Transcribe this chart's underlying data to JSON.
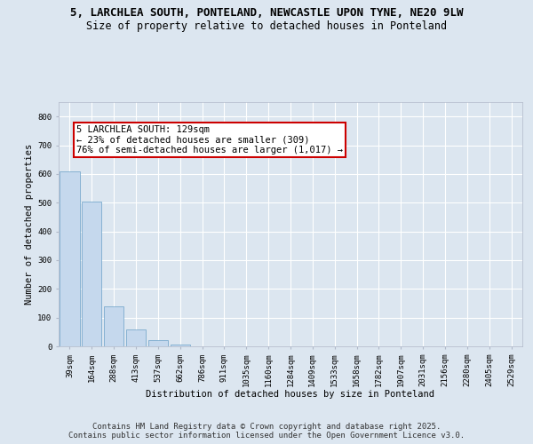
{
  "title_line1": "5, LARCHLEA SOUTH, PONTELAND, NEWCASTLE UPON TYNE, NE20 9LW",
  "title_line2": "Size of property relative to detached houses in Ponteland",
  "xlabel": "Distribution of detached houses by size in Ponteland",
  "ylabel": "Number of detached properties",
  "categories": [
    "39sqm",
    "164sqm",
    "288sqm",
    "413sqm",
    "537sqm",
    "662sqm",
    "786sqm",
    "911sqm",
    "1035sqm",
    "1160sqm",
    "1284sqm",
    "1409sqm",
    "1533sqm",
    "1658sqm",
    "1782sqm",
    "1907sqm",
    "2031sqm",
    "2156sqm",
    "2280sqm",
    "2405sqm",
    "2529sqm"
  ],
  "values": [
    610,
    503,
    140,
    60,
    22,
    5,
    1,
    0,
    0,
    0,
    0,
    0,
    0,
    0,
    0,
    0,
    0,
    0,
    0,
    0,
    0
  ],
  "bar_color": "#c5d8ed",
  "bar_edge_color": "#6aa0c7",
  "annotation_text": "5 LARCHLEA SOUTH: 129sqm\n← 23% of detached houses are smaller (309)\n76% of semi-detached houses are larger (1,017) →",
  "annotation_box_color": "#ffffff",
  "annotation_box_edge_color": "#cc0000",
  "ylim": [
    0,
    850
  ],
  "yticks": [
    0,
    100,
    200,
    300,
    400,
    500,
    600,
    700,
    800
  ],
  "background_color": "#dce6f0",
  "plot_bg_color": "#dce6f0",
  "grid_color": "#ffffff",
  "footer_line1": "Contains HM Land Registry data © Crown copyright and database right 2025.",
  "footer_line2": "Contains public sector information licensed under the Open Government Licence v3.0.",
  "title_fontsize": 9,
  "subtitle_fontsize": 8.5,
  "axis_label_fontsize": 7.5,
  "tick_fontsize": 6.5,
  "annotation_fontsize": 7.5,
  "footer_fontsize": 6.5
}
